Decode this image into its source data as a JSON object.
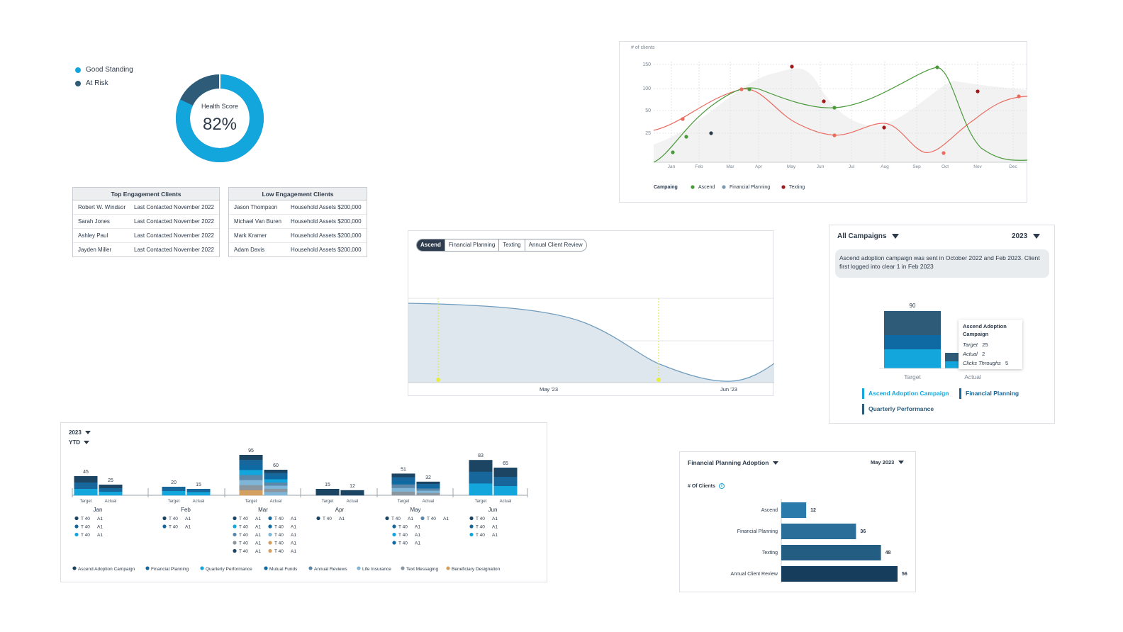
{
  "health": {
    "legend": [
      {
        "label": "Good Standing",
        "color": "#13a6dc"
      },
      {
        "label": "At Risk",
        "color": "#2d5b78"
      }
    ],
    "title": "Health Score",
    "value": "82%",
    "good_fraction": 0.82
  },
  "top_clients": {
    "title": "Top Engagement Clients",
    "rows": [
      {
        "name": "Robert W. Windsor",
        "info": "Last Contacted November 2022"
      },
      {
        "name": "Sarah Jones",
        "info": "Last Contacted November 2022"
      },
      {
        "name": "Ashley Paul",
        "info": "Last Contacted November 2022"
      },
      {
        "name": "Jayden Miller",
        "info": "Last Contacted November 2022"
      }
    ]
  },
  "low_clients": {
    "title": "Low Engagement Clients",
    "rows": [
      {
        "name": "Jason Thompson",
        "info": "Household Assets $200,000"
      },
      {
        "name": "Michael Van Buren",
        "info": "Household Assets $200,000"
      },
      {
        "name": "Mark Kramer",
        "info": "Household Assets $200,000"
      },
      {
        "name": "Adam Davis",
        "info": "Household Assets $200,000"
      }
    ]
  },
  "line_chart": {
    "ylabel": "# of clients",
    "yticks": [
      "150",
      "100",
      "50",
      "25"
    ],
    "months": [
      "Jan",
      "Feb",
      "Mar",
      "Apr",
      "May",
      "Jun",
      "Jul",
      "Aug",
      "Sep",
      "Oct",
      "Nov",
      "Dec"
    ],
    "legend_title": "Campaing",
    "legend": [
      {
        "label": "Ascend",
        "color": "#4a9a3a"
      },
      {
        "label": "Financial Planning",
        "color": "#7a9ab0"
      },
      {
        "label": "Texting",
        "color": "#a01818"
      }
    ]
  },
  "area_chart": {
    "tabs": [
      "Ascend",
      "Financial Planning",
      "Texting",
      "Annual Client Review"
    ],
    "active_tab": "Ascend",
    "xlabels": [
      "May '23",
      "Jun '23"
    ]
  },
  "campaigns": {
    "filter": "All Campaigns",
    "year": "2023",
    "message": "Ascend adoption campaign was sent in October 2022 and Feb 2023. Client first logged into clear 1 in Feb 2023",
    "target_value": "90",
    "xlabels": [
      "Target",
      "Actual"
    ],
    "tooltip": {
      "title": "Ascend Adoption Campaign",
      "rows": [
        {
          "k": "Target",
          "v": "25"
        },
        {
          "k": "Actual",
          "v": "2"
        },
        {
          "k": "Clicks Throughs",
          "v": "5"
        }
      ]
    },
    "legend": [
      {
        "label": "Ascend Adoption Campaign",
        "color": "#13a6dc"
      },
      {
        "label": "Financial Planning",
        "color": "#17679c"
      },
      {
        "label": "Quarterly Performance",
        "color": "#2d5b78"
      }
    ]
  },
  "monthly": {
    "year": "2023",
    "period": "YTD",
    "target_label": "Target",
    "actual_label": "Actual",
    "legend_item": {
      "t": "T 40",
      "a": "A1"
    },
    "months": [
      {
        "name": "Jan",
        "target": "45",
        "actual": "25"
      },
      {
        "name": "Feb",
        "target": "20",
        "actual": "15"
      },
      {
        "name": "Mar",
        "target": "95",
        "actual": "60"
      },
      {
        "name": "Apr",
        "target": "15",
        "actual": "12"
      },
      {
        "name": "May",
        "target": "51",
        "actual": "32"
      },
      {
        "name": "Jun",
        "target": "83",
        "actual": "65"
      }
    ],
    "legend": [
      {
        "label": "Ascend Adoption Campaign",
        "color": "#1c4563"
      },
      {
        "label": "Financial Planning",
        "color": "#17679c"
      },
      {
        "label": "Quarterly Performance",
        "color": "#13a6dc"
      },
      {
        "label": "Mutual Funds",
        "color": "#0f6aa3"
      },
      {
        "label": "Annual Reviews",
        "color": "#5b87a8"
      },
      {
        "label": "Life Insurance",
        "color": "#7fb5d6"
      },
      {
        "label": "Text Messaging",
        "color": "#8a96a0"
      },
      {
        "label": "Beneficiary Designation",
        "color": "#d4a060"
      }
    ]
  },
  "adoption": {
    "title": "Financial Planning Adoption",
    "month": "May 2023",
    "subtitle": "# Of Clients",
    "bars": [
      {
        "label": "Ascend",
        "value": 12,
        "text": "12"
      },
      {
        "label": "Financial Planning",
        "value": 36,
        "text": "36"
      },
      {
        "label": "Texting",
        "value": 48,
        "text": "48"
      },
      {
        "label": "Annual Client Review",
        "value": 56,
        "text": "56"
      }
    ]
  }
}
